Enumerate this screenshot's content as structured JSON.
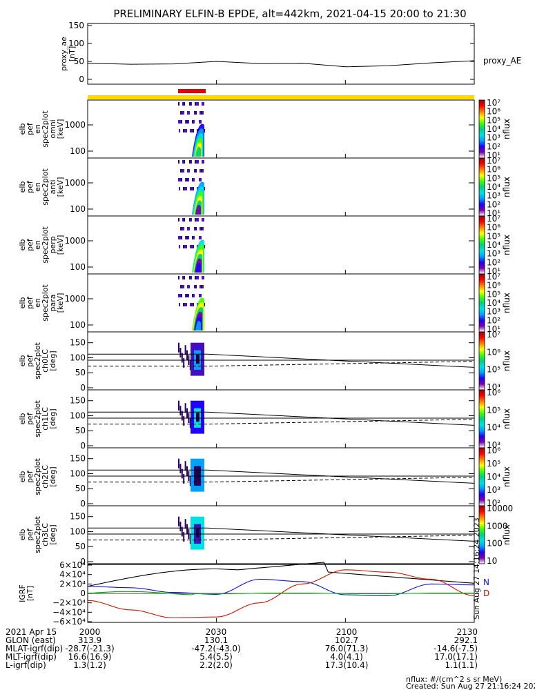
{
  "title": "PRELIMINARY ELFIN-B EPDE, alt=442km, 2021-04-15 20:00 to 21:30",
  "colors": {
    "ae_line": "#000000",
    "ns_bar": "#ffd800",
    "sci_bar": "#e80000",
    "bx": "#000000",
    "by": "#1010d0",
    "bz": "#d01000",
    "bt": "#00b000"
  },
  "panels": {
    "ae": {
      "ylabel": [
        "proxy_ae",
        "[nT]"
      ],
      "yticks": [
        "150",
        "100",
        "50",
        "0"
      ],
      "legend": "proxy_AE"
    },
    "spec": [
      {
        "ylabel": [
          "elb",
          "pef",
          "en",
          "spec2plot",
          "omni",
          "[keV]"
        ],
        "yticks": [
          "1000",
          "100"
        ],
        "zlabel": "nflux",
        "zticks": [
          "10⁷",
          "10⁶",
          "10⁵",
          "10⁴",
          "10³",
          "10²",
          "10¹"
        ]
      },
      {
        "ylabel": [
          "elb",
          "pef",
          "en",
          "spec2plot",
          "anti",
          "[keV]"
        ],
        "yticks": [
          "1000",
          "100"
        ],
        "zlabel": "nflux",
        "zticks": [
          "10⁷",
          "10⁶",
          "10⁵",
          "10⁴",
          "10³",
          "10²",
          "10¹"
        ]
      },
      {
        "ylabel": [
          "elb",
          "pef",
          "en",
          "spec2plot",
          "perp",
          "[keV]"
        ],
        "yticks": [
          "1000",
          "100"
        ],
        "zlabel": "nflux",
        "zticks": [
          "10⁷",
          "10⁶",
          "10⁵",
          "10⁴",
          "10³",
          "10²",
          "10¹"
        ]
      },
      {
        "ylabel": [
          "elb",
          "pef",
          "en",
          "spec2plot",
          "para",
          "[keV]"
        ],
        "yticks": [
          "1000",
          "100"
        ],
        "zlabel": "nflux",
        "zticks": [
          "10⁷",
          "10⁶",
          "10⁵",
          "10⁴",
          "10³",
          "10²",
          "10¹"
        ]
      }
    ],
    "pa": [
      {
        "ylabel": [
          "elb",
          "pef",
          "spec2plot",
          "ch0LC",
          "[deg]"
        ],
        "yticks": [
          "150",
          "100",
          "50",
          "0"
        ],
        "zlabel": "nflux",
        "zticks": [
          "10⁷",
          "10⁶",
          "10⁵",
          "10⁴"
        ]
      },
      {
        "ylabel": [
          "elb",
          "pef",
          "spec2plot",
          "ch1LC",
          "[deg]"
        ],
        "yticks": [
          "150",
          "100",
          "50",
          "0"
        ],
        "zlabel": "nflux",
        "zticks": [
          "10⁶",
          "10⁵",
          "10⁴",
          "10³"
        ]
      },
      {
        "ylabel": [
          "elb",
          "pef",
          "spec2plot",
          "ch2LC",
          "[deg]"
        ],
        "yticks": [
          "150",
          "100",
          "50",
          "0"
        ],
        "zlabel": "nflux",
        "zticks": [
          "10⁶",
          "10⁵",
          "10⁴",
          "10³",
          "10²"
        ]
      },
      {
        "ylabel": [
          "elb",
          "pef",
          "spec2plot",
          "ch3LC",
          "[deg]"
        ],
        "yticks": [
          "150",
          "100",
          "50",
          "0"
        ],
        "zlabel": "nflux",
        "zticks": [
          "10000",
          "1000",
          "100",
          "10"
        ]
      }
    ],
    "igrf": {
      "ylabel": [
        "IGRF",
        "[nT]"
      ],
      "yticks": [
        "6×10⁴",
        "4×10⁴",
        "2×10⁴",
        "0",
        "−2×10⁴",
        "−4×10⁴",
        "−6×10⁴"
      ],
      "legend_n": "N",
      "legend_d": "D",
      "side_stamp": "Sun Aug 27 14:16:24 2023"
    }
  },
  "time_axis": {
    "ticks": [
      "2000",
      "2030",
      "2100",
      "2130"
    ]
  },
  "ephemeris": {
    "rows": [
      {
        "label": "2021 Apr 15",
        "values": [
          "2000",
          "2030",
          "2100",
          "2130"
        ]
      },
      {
        "label": "GLON (east)",
        "values": [
          "313.9",
          "130.1",
          "102.7",
          "292.1"
        ]
      },
      {
        "label": "MLAT-igrf(dip)",
        "values": [
          "-28.7(-21.3)",
          "-47.2(-43.0)",
          "76.0(71.3)",
          "-14.6(-7.5)"
        ]
      },
      {
        "label": "MLT-igrf(dip)",
        "values": [
          "16.6(16.9)",
          "5.4(5.5)",
          "4.0(4.1)",
          "17.0(17.1)"
        ]
      },
      {
        "label": "L-igrf(dip)",
        "values": [
          "1.3(1.2)",
          "2.2(2.0)",
          "17.3(10.4)",
          "1.1(1.1)"
        ]
      }
    ]
  },
  "footer": {
    "units": "nflux: #/(cm^2 s sr MeV)",
    "created": "Created: Sun Aug 27 21:16:24 2023"
  },
  "chart_data": [
    {
      "type": "line",
      "title": "PRELIMINARY ELFIN-B EPDE, alt=442km, 2021-04-15 20:00 to 21:30",
      "ylabel": "proxy_ae [nT]",
      "ylim": [
        0,
        150
      ],
      "series": [
        {
          "name": "proxy_AE",
          "x": [
            "20:00",
            "20:10",
            "20:20",
            "20:30",
            "20:40",
            "20:50",
            "21:00",
            "21:10",
            "21:20",
            "21:30"
          ],
          "values": [
            45,
            42,
            43,
            50,
            44,
            45,
            35,
            38,
            46,
            52
          ]
        }
      ]
    },
    {
      "type": "line",
      "ylabel": "IGRF [nT]",
      "ylim": [
        -60000,
        60000
      ],
      "series": [
        {
          "name": "N",
          "x": [
            "20:00",
            "20:10",
            "20:20",
            "20:30",
            "20:40",
            "20:50",
            "21:00",
            "21:10",
            "21:20",
            "21:30"
          ],
          "values": [
            15000,
            12000,
            2000,
            -2000,
            30000,
            25000,
            -3000,
            -5000,
            20000,
            18000
          ]
        },
        {
          "name": "D",
          "x": [
            "20:00",
            "20:10",
            "20:20",
            "20:30",
            "20:40",
            "20:50",
            "21:00",
            "21:10",
            "21:20",
            "21:30"
          ],
          "values": [
            -15000,
            -35000,
            -52000,
            -50000,
            -20000,
            20000,
            50000,
            45000,
            30000,
            -5000
          ]
        }
      ]
    }
  ]
}
